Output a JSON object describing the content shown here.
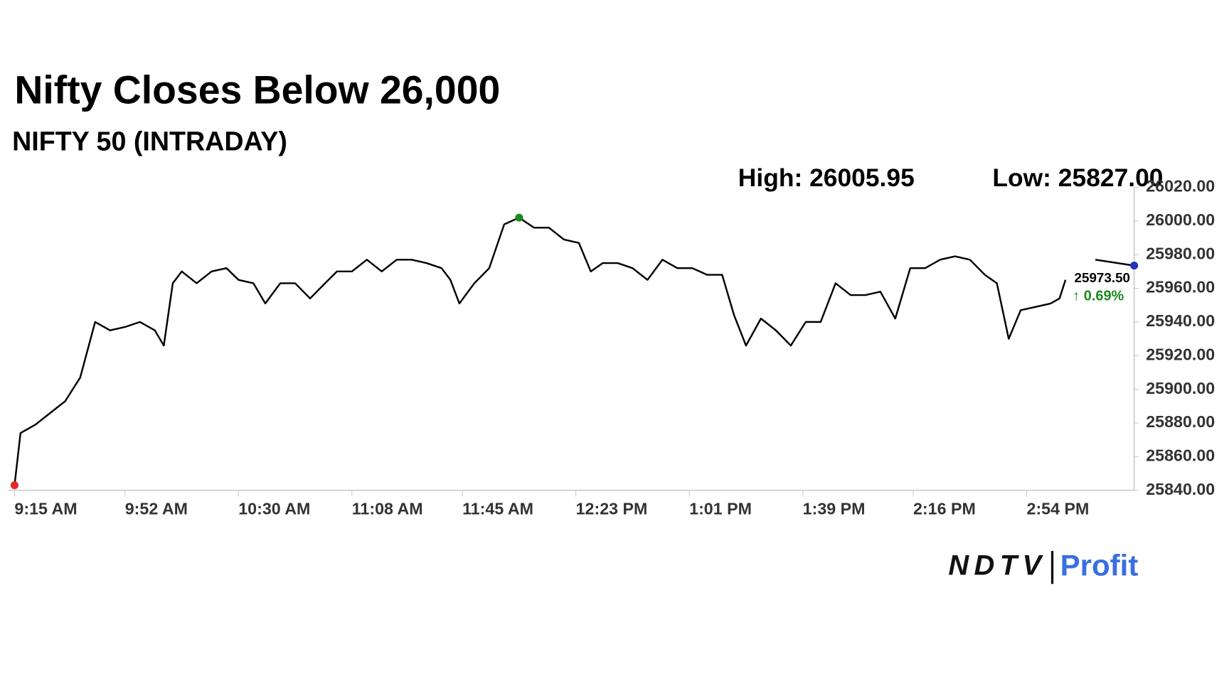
{
  "chart_data": {
    "type": "line",
    "title": "Nifty Closes Below 26,000",
    "subtitle": "NIFTY 50 (INTRADAY)",
    "high_label": "High: 26005.95",
    "low_label": "Low: 25827.00",
    "last_label": "25973.50",
    "change_label": "↑ 0.69%",
    "brand": [
      "NDTV",
      "Profit"
    ],
    "x": [
      "9:15 AM",
      "9:17 AM",
      "9:22 AM",
      "9:27 AM",
      "9:32 AM",
      "9:37 AM",
      "9:42 AM",
      "9:47 AM",
      "9:52 AM",
      "9:57 AM",
      "10:02 AM",
      "10:05 AM",
      "10:08 AM",
      "10:11 AM",
      "10:16 AM",
      "10:21 AM",
      "10:26 AM",
      "10:30 AM",
      "10:35 AM",
      "10:39 AM",
      "10:44 AM",
      "10:49 AM",
      "10:54 AM",
      "10:59 AM",
      "11:03 AM",
      "11:08 AM",
      "11:13 AM",
      "11:18 AM",
      "11:23 AM",
      "11:28 AM",
      "11:33 AM",
      "11:38 AM",
      "11:41 AM",
      "11:44 AM",
      "11:49 AM",
      "11:54 AM",
      "11:59 AM",
      "12:04 PM",
      "12:09 PM",
      "12:14 PM",
      "12:19 PM",
      "12:24 PM",
      "12:28 PM",
      "12:32 PM",
      "12:37 PM",
      "12:42 PM",
      "12:47 PM",
      "12:52 PM",
      "12:57 PM",
      "1:02 PM",
      "1:07 PM",
      "1:12 PM",
      "1:16 PM",
      "1:20 PM",
      "1:25 PM",
      "1:30 PM",
      "1:35 PM",
      "1:40 PM",
      "1:45 PM",
      "1:50 PM",
      "1:55 PM",
      "2:00 PM",
      "2:05 PM",
      "2:10 PM",
      "2:15 PM",
      "2:20 PM",
      "2:25 PM",
      "2:30 PM",
      "2:35 PM",
      "2:40 PM",
      "2:44 PM",
      "2:48 PM",
      "2:52 PM",
      "2:57 PM",
      "3:02 PM",
      "3:05 PM",
      "3:07 PM",
      "3:12 PM",
      "3:17 PM",
      "3:30 PM"
    ],
    "series": [
      {
        "name": "NIFTY 50",
        "color": "#000000",
        "values": [
          25843,
          25874,
          25879,
          25886,
          25893,
          25907,
          25940,
          25935,
          25937,
          25940,
          25935,
          25926,
          25963,
          25970,
          25963,
          25970,
          25972,
          25965,
          25963,
          25951,
          25963,
          25963,
          25954,
          25963,
          25970,
          25970,
          25977,
          25970,
          25977,
          25977,
          25975,
          25972,
          25965,
          25951,
          25963,
          25972,
          25998,
          26002,
          25996,
          25996,
          25989,
          25987,
          25970,
          25975,
          25975,
          25972,
          25965,
          25977,
          25972,
          25972,
          25968,
          25968,
          25944,
          25926,
          25942,
          25935,
          25926,
          25940,
          25940,
          25963,
          25956,
          25956,
          25958,
          25942,
          25972,
          25972,
          25977,
          25979,
          25977,
          25968,
          25963,
          25930,
          25947,
          25949,
          25951,
          25954,
          25965,
          null,
          25977,
          25973.5
        ]
      }
    ],
    "xlim": [
      "9:15 AM",
      "3:30 PM"
    ],
    "xticks": [
      "9:15 AM",
      "9:52 AM",
      "10:30 AM",
      "11:08 AM",
      "11:45 AM",
      "12:23 PM",
      "1:01 PM",
      "1:39 PM",
      "2:16 PM",
      "2:54 PM"
    ],
    "ylim": [
      25840,
      26020
    ],
    "yticks": [
      {
        "value": 25840,
        "label": "25840.00"
      },
      {
        "value": 25860,
        "label": "25860.00"
      },
      {
        "value": 25880,
        "label": "25880.00"
      },
      {
        "value": 25900,
        "label": "25900.00"
      },
      {
        "value": 25920,
        "label": "25920.00"
      },
      {
        "value": 25940,
        "label": "25940.00"
      },
      {
        "value": 25960,
        "label": "25960.00"
      },
      {
        "value": 25980,
        "label": "25980.00"
      },
      {
        "value": 26000,
        "label": "26000.00"
      },
      {
        "value": 26020,
        "label": "26020.00"
      }
    ],
    "marker_colors": [
      "#e8262a",
      "#1a8a1a",
      "#2233bb"
    ]
  }
}
